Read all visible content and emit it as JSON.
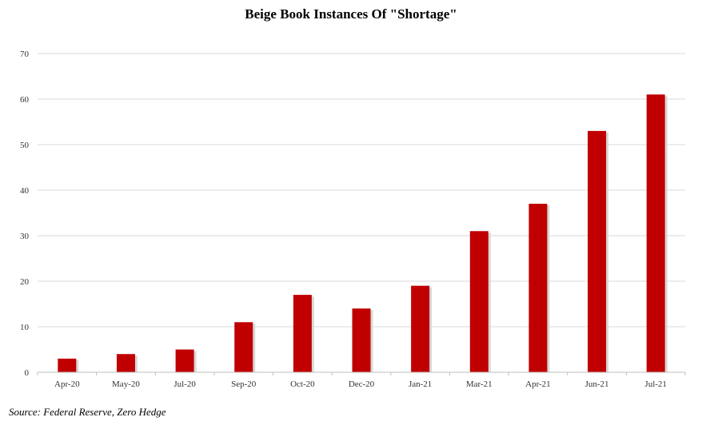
{
  "chart_data": {
    "type": "bar",
    "title": "Beige Book Instances Of \"Shortage\"",
    "source": "Source: Federal Reserve, Zero Hedge",
    "categories": [
      "Apr-20",
      "May-20",
      "Jul-20",
      "Sep-20",
      "Oct-20",
      "Dec-20",
      "Jan-21",
      "Mar-21",
      "Apr-21",
      "Jun-21",
      "Jul-21"
    ],
    "values": [
      3,
      4,
      5,
      11,
      17,
      14,
      19,
      31,
      37,
      53,
      61
    ],
    "ylim": [
      0,
      70
    ],
    "yticks": [
      0,
      10,
      20,
      30,
      40,
      50,
      60,
      70
    ],
    "grid": true,
    "bar_color": "#c00000",
    "grid_color": "#d9d9d9",
    "axis_color": "#bfbfbf",
    "xlabel": "",
    "ylabel": ""
  }
}
